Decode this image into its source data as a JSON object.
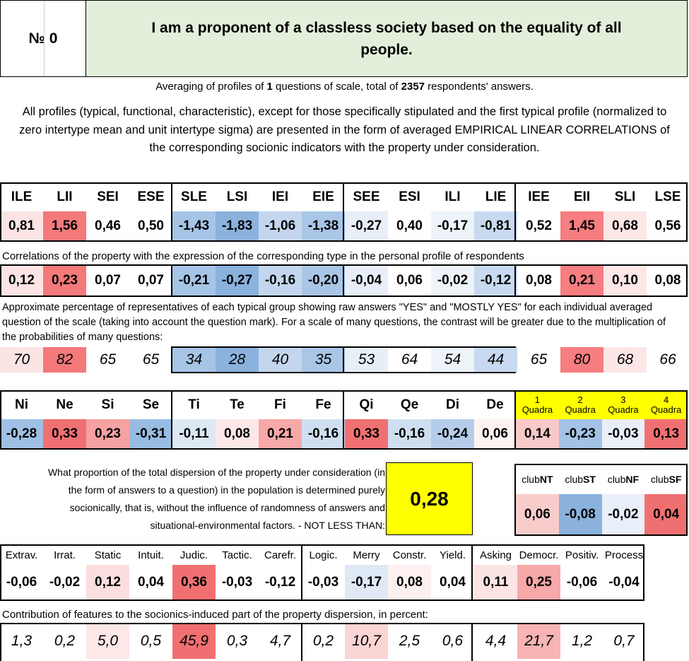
{
  "header": {
    "number_label": "№ 0",
    "title": "I am a proponent of a classless society based on the equality of all people."
  },
  "averaging": {
    "prefix": "Averaging of profiles of ",
    "questions": "1",
    "middle": " questions of scale, total of ",
    "respondents": "2357",
    "suffix": " respondents' answers."
  },
  "description": "All profiles (typical, functional, characteristic), except for those specifically stipulated and the first typical profile (normalized to zero intertype mean and unit intertype sigma) are presented in the form of averaged EMPIRICAL LINEAR CORRELATIONS of the corresponding socionic indicators with the property under consideration.",
  "types": [
    "ILE",
    "LII",
    "SEI",
    "ESE",
    "SLE",
    "LSI",
    "IEI",
    "EIE",
    "SEE",
    "ESI",
    "ILI",
    "LIE",
    "IEE",
    "EII",
    "SLI",
    "LSE"
  ],
  "typical_profile": [
    "0,81",
    "1,56",
    "0,46",
    "0,50",
    "-1,43",
    "-1,83",
    "-1,06",
    "-1,38",
    "-0,27",
    "0,40",
    "-0,17",
    "-0,81",
    "0,52",
    "1,45",
    "0,68",
    "0,56"
  ],
  "correlation_note": "Correlations of the property with the expression of the corresponding type in the personal profile of respondents",
  "correlations": [
    "0,12",
    "0,23",
    "0,07",
    "0,07",
    "-0,21",
    "-0,27",
    "-0,16",
    "-0,20",
    "-0,04",
    "0,06",
    "-0,02",
    "-0,12",
    "0,08",
    "0,21",
    "0,10",
    "0,08"
  ],
  "percent_note": "Approximate percentage of representatives of each typical group showing raw answers \"YES\" and \"MOSTLY YES\" for each individual averaged question of the scale (taking into account the question mark). For a scale of many questions, the contrast will be greater due to the multiplication of the probabilities of many questions:",
  "percentages": [
    "70",
    "82",
    "65",
    "65",
    "34",
    "28",
    "40",
    "35",
    "53",
    "64",
    "54",
    "44",
    "65",
    "80",
    "68",
    "66"
  ],
  "functions": [
    "Ni",
    "Ne",
    "Si",
    "Se",
    "Ti",
    "Te",
    "Fi",
    "Fe",
    "Qi",
    "Qe",
    "Di",
    "De"
  ],
  "function_values": [
    "-0,28",
    "0,33",
    "0,23",
    "-0,31",
    "-0,11",
    "0,08",
    "0,21",
    "-0,16",
    "0,33",
    "-0,16",
    "-0,24",
    "0,06"
  ],
  "quadras": [
    {
      "num": "1",
      "label": "Quadra"
    },
    {
      "num": "2",
      "label": "Quadra"
    },
    {
      "num": "3",
      "label": "Quadra"
    },
    {
      "num": "4",
      "label": "Quadra"
    }
  ],
  "quadra_values": [
    "0,14",
    "-0,23",
    "-0,03",
    "0,13"
  ],
  "proportion": {
    "text": "What proportion of the total dispersion of the property under consideration (in the form of answers to a question) in the population is determined purely socionically, that is, without the influence of randomness of answers and situational-environmental factors. - NOT LESS THAN:",
    "value": "0,28"
  },
  "clubs": [
    {
      "prefix": "club",
      "suffix": "NT"
    },
    {
      "prefix": "club",
      "suffix": "ST"
    },
    {
      "prefix": "club",
      "suffix": "NF"
    },
    {
      "prefix": "club",
      "suffix": "SF"
    }
  ],
  "club_values": [
    "0,06",
    "-0,08",
    "-0,02",
    "0,04"
  ],
  "features": [
    "Extrav.",
    "Irrat.",
    "Static",
    "Intuit.",
    "Judic.",
    "Tactic.",
    "Carefr.",
    "Logic.",
    "Merry",
    "Constr.",
    "Yield.",
    "Asking",
    "Democr.",
    "Positiv.",
    "Process"
  ],
  "feature_values": [
    "-0,06",
    "-0,02",
    "0,12",
    "0,04",
    "0,36",
    "-0,03",
    "-0,12",
    "-0,03",
    "-0,17",
    "0,08",
    "0,04",
    "0,11",
    "0,25",
    "-0,06",
    "-0,04"
  ],
  "contribution_note": "Contribution of features to the socionics-induced part of the property dispersion, in percent:",
  "contributions": [
    "1,3",
    "0,2",
    "5,0",
    "0,5",
    "45,9",
    "0,3",
    "4,7",
    "0,2",
    "10,7",
    "2,5",
    "0,6",
    "4,4",
    "21,7",
    "1,2",
    "0,7"
  ],
  "colors": {
    "typical": [
      "#fce4e4",
      "#f4797b",
      "#ffffff",
      "#ffffff",
      "#a6c4e6",
      "#8ab2dd",
      "#c3d6ee",
      "#a9c6e6",
      "#e7eef8",
      "#ffffff",
      "#eef3fa",
      "#c8daf0",
      "#ffffff",
      "#f67d80",
      "#fde6e6",
      "#ffffff"
    ],
    "correlations": [
      "#fce4e4",
      "#f4797b",
      "#ffffff",
      "#ffffff",
      "#a6c4e6",
      "#8ab2dd",
      "#c3d6ee",
      "#a9c6e6",
      "#e7eef8",
      "#ffffff",
      "#eef3fa",
      "#c8daf0",
      "#ffffff",
      "#f67d80",
      "#fde6e6",
      "#ffffff"
    ],
    "percentages": [
      "#fce4e4",
      "#f4797b",
      "#ffffff",
      "#ffffff",
      "#a6c4e6",
      "#8ab2dd",
      "#c3d6ee",
      "#a9c6e6",
      "#e7eef8",
      "#ffffff",
      "#eef3fa",
      "#c8daf0",
      "#ffffff",
      "#f67d80",
      "#fde6e6",
      "#ffffff"
    ],
    "functions": [
      "#9fc0e4",
      "#f07072",
      "#f6a2a3",
      "#98bbe2",
      "#dde8f5",
      "#fde8e8",
      "#f7a8a9",
      "#cfdff1",
      "#f07072",
      "#cfdff1",
      "#b5cdea",
      "#fdf3f3"
    ],
    "quadra_values": [
      "#f9c9c9",
      "#a3c2e5",
      "#e9eff8",
      "#f07072"
    ],
    "club_values": [
      "#f9cccc",
      "#8ab2dd",
      "#e9eff8",
      "#f07072"
    ],
    "features": [
      "#ffffff",
      "#ffffff",
      "#fbdede",
      "#ffffff",
      "#f07072",
      "#ffffff",
      "#ffffff",
      "#ffffff",
      "#dfe8f5",
      "#fdf0f0",
      "#ffffff",
      "#fde4e4",
      "#f7a8a9",
      "#ffffff",
      "#ffffff"
    ],
    "contributions": [
      "#ffffff",
      "#ffffff",
      "#fde7e7",
      "#ffffff",
      "#f07072",
      "#ffffff",
      "#ffffff",
      "#ffffff",
      "#fbd4d4",
      "#ffffff",
      "#ffffff",
      "#ffffff",
      "#f8b4b4",
      "#ffffff",
      "#ffffff"
    ]
  }
}
